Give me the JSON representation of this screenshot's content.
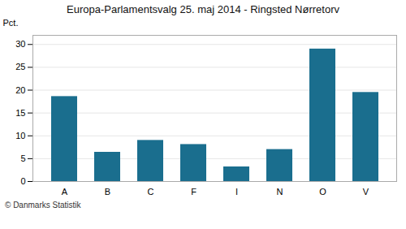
{
  "chart_data": {
    "type": "bar",
    "title": "Europa-Parlamentsvalg 25. maj 2014 - Ringsted Nørretorv",
    "categories": [
      "A",
      "B",
      "C",
      "F",
      "I",
      "N",
      "O",
      "V"
    ],
    "values": [
      18.6,
      6.4,
      9.0,
      8.1,
      3.2,
      7.0,
      29.0,
      19.5
    ],
    "color": "#1a6e8e",
    "ylabel": "Pct.",
    "ylim": [
      0,
      32
    ],
    "yticks": [
      0,
      5,
      10,
      15,
      20,
      25,
      30
    ],
    "grid": true,
    "annotations": [
      "© Danmarks Statistik"
    ]
  }
}
